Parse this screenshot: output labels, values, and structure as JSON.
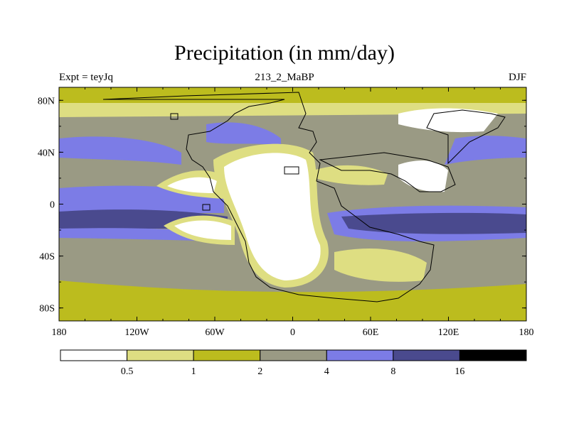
{
  "chart_data": {
    "type": "heatmap",
    "title": "Precipitation (in mm/day)",
    "left_label": "Expt = teyJq",
    "center_label": "213_2_MaBP",
    "right_label": "DJF",
    "x_ticks": [
      "180",
      "120W",
      "60W",
      "0",
      "60E",
      "120E",
      "180"
    ],
    "x_tick_values": [
      -180,
      -120,
      -60,
      0,
      60,
      120,
      180
    ],
    "y_ticks": [
      "80N",
      "40N",
      "0",
      "40S",
      "80S"
    ],
    "y_tick_values": [
      80,
      40,
      0,
      -40,
      -80
    ],
    "xlim": [
      -180,
      180
    ],
    "ylim": [
      -90,
      90
    ],
    "colorbar": {
      "levels": [
        "0.5",
        "1",
        "2",
        "4",
        "8",
        "16"
      ],
      "colors": [
        "#ffffff",
        "#dede82",
        "#bcbc1e",
        "#9a9a84",
        "#7c7ce6",
        "#4a4a8e",
        "#000000"
      ]
    }
  }
}
